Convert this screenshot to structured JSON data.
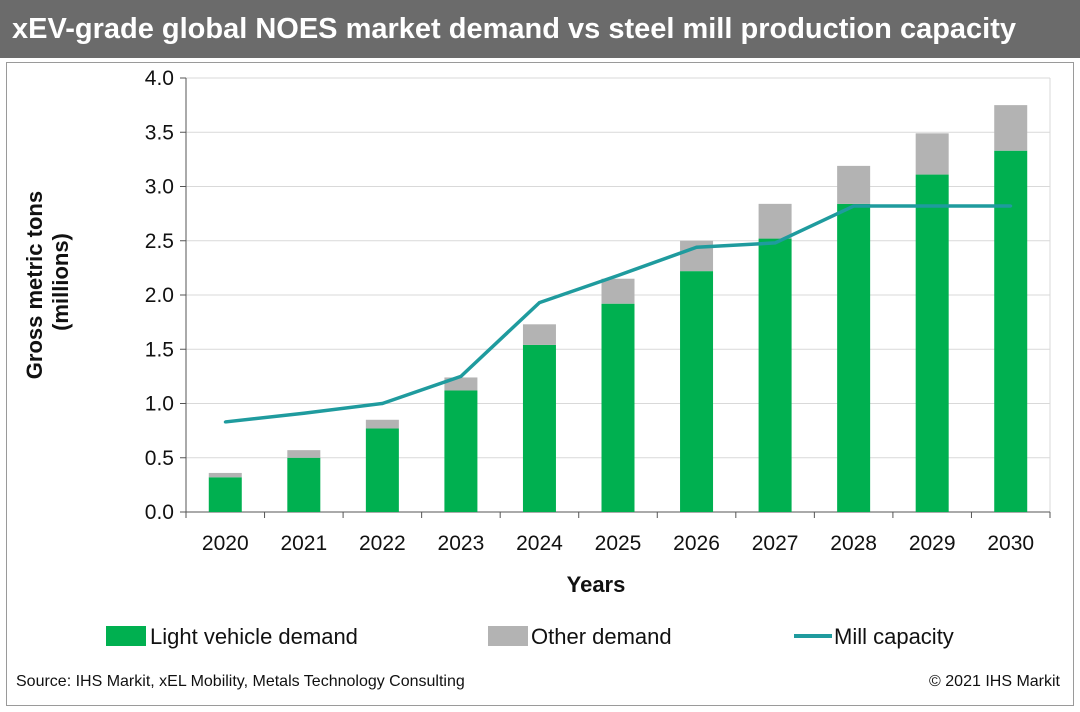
{
  "colors": {
    "light_vehicle": "#00b050",
    "other": "#b3b3b3",
    "mill": "#1f9b9e",
    "title_bg": "#6b6b6b",
    "grid": "#d9d9d9"
  },
  "chart_data": {
    "type": "bar",
    "stacked": true,
    "title": "xEV-grade global NOES market demand vs steel mill production capacity",
    "xlabel": "Years",
    "ylabel": "Gross metric tons (millions)",
    "ylabel_lines": [
      "Gross metric tons",
      "(millions)"
    ],
    "ylim": [
      0,
      4.0
    ],
    "yticks": [
      "0.0",
      "0.5",
      "1.0",
      "1.5",
      "2.0",
      "2.5",
      "3.0",
      "3.5",
      "4.0"
    ],
    "categories": [
      "2020",
      "2021",
      "2022",
      "2023",
      "2024",
      "2025",
      "2026",
      "2027",
      "2028",
      "2029",
      "2030"
    ],
    "series": [
      {
        "name": "Light vehicle demand",
        "kind": "bar",
        "values": [
          0.32,
          0.5,
          0.77,
          1.12,
          1.54,
          1.92,
          2.22,
          2.52,
          2.84,
          3.11,
          3.33
        ]
      },
      {
        "name": "Other demand",
        "kind": "bar",
        "values": [
          0.04,
          0.07,
          0.08,
          0.12,
          0.19,
          0.23,
          0.28,
          0.32,
          0.35,
          0.38,
          0.42
        ]
      },
      {
        "name": "Mill capacity",
        "kind": "line",
        "values": [
          0.83,
          0.91,
          1.0,
          1.25,
          1.93,
          2.18,
          2.44,
          2.48,
          2.82,
          2.82,
          2.82
        ]
      }
    ],
    "legend": [
      "Light vehicle demand",
      "Other demand",
      "Mill capacity"
    ],
    "legend_position": "bottom",
    "grid": true
  },
  "footer": {
    "source": "Source: IHS Markit, xEL Mobility, Metals Technology Consulting",
    "copyright": "© 2021 IHS Markit"
  }
}
